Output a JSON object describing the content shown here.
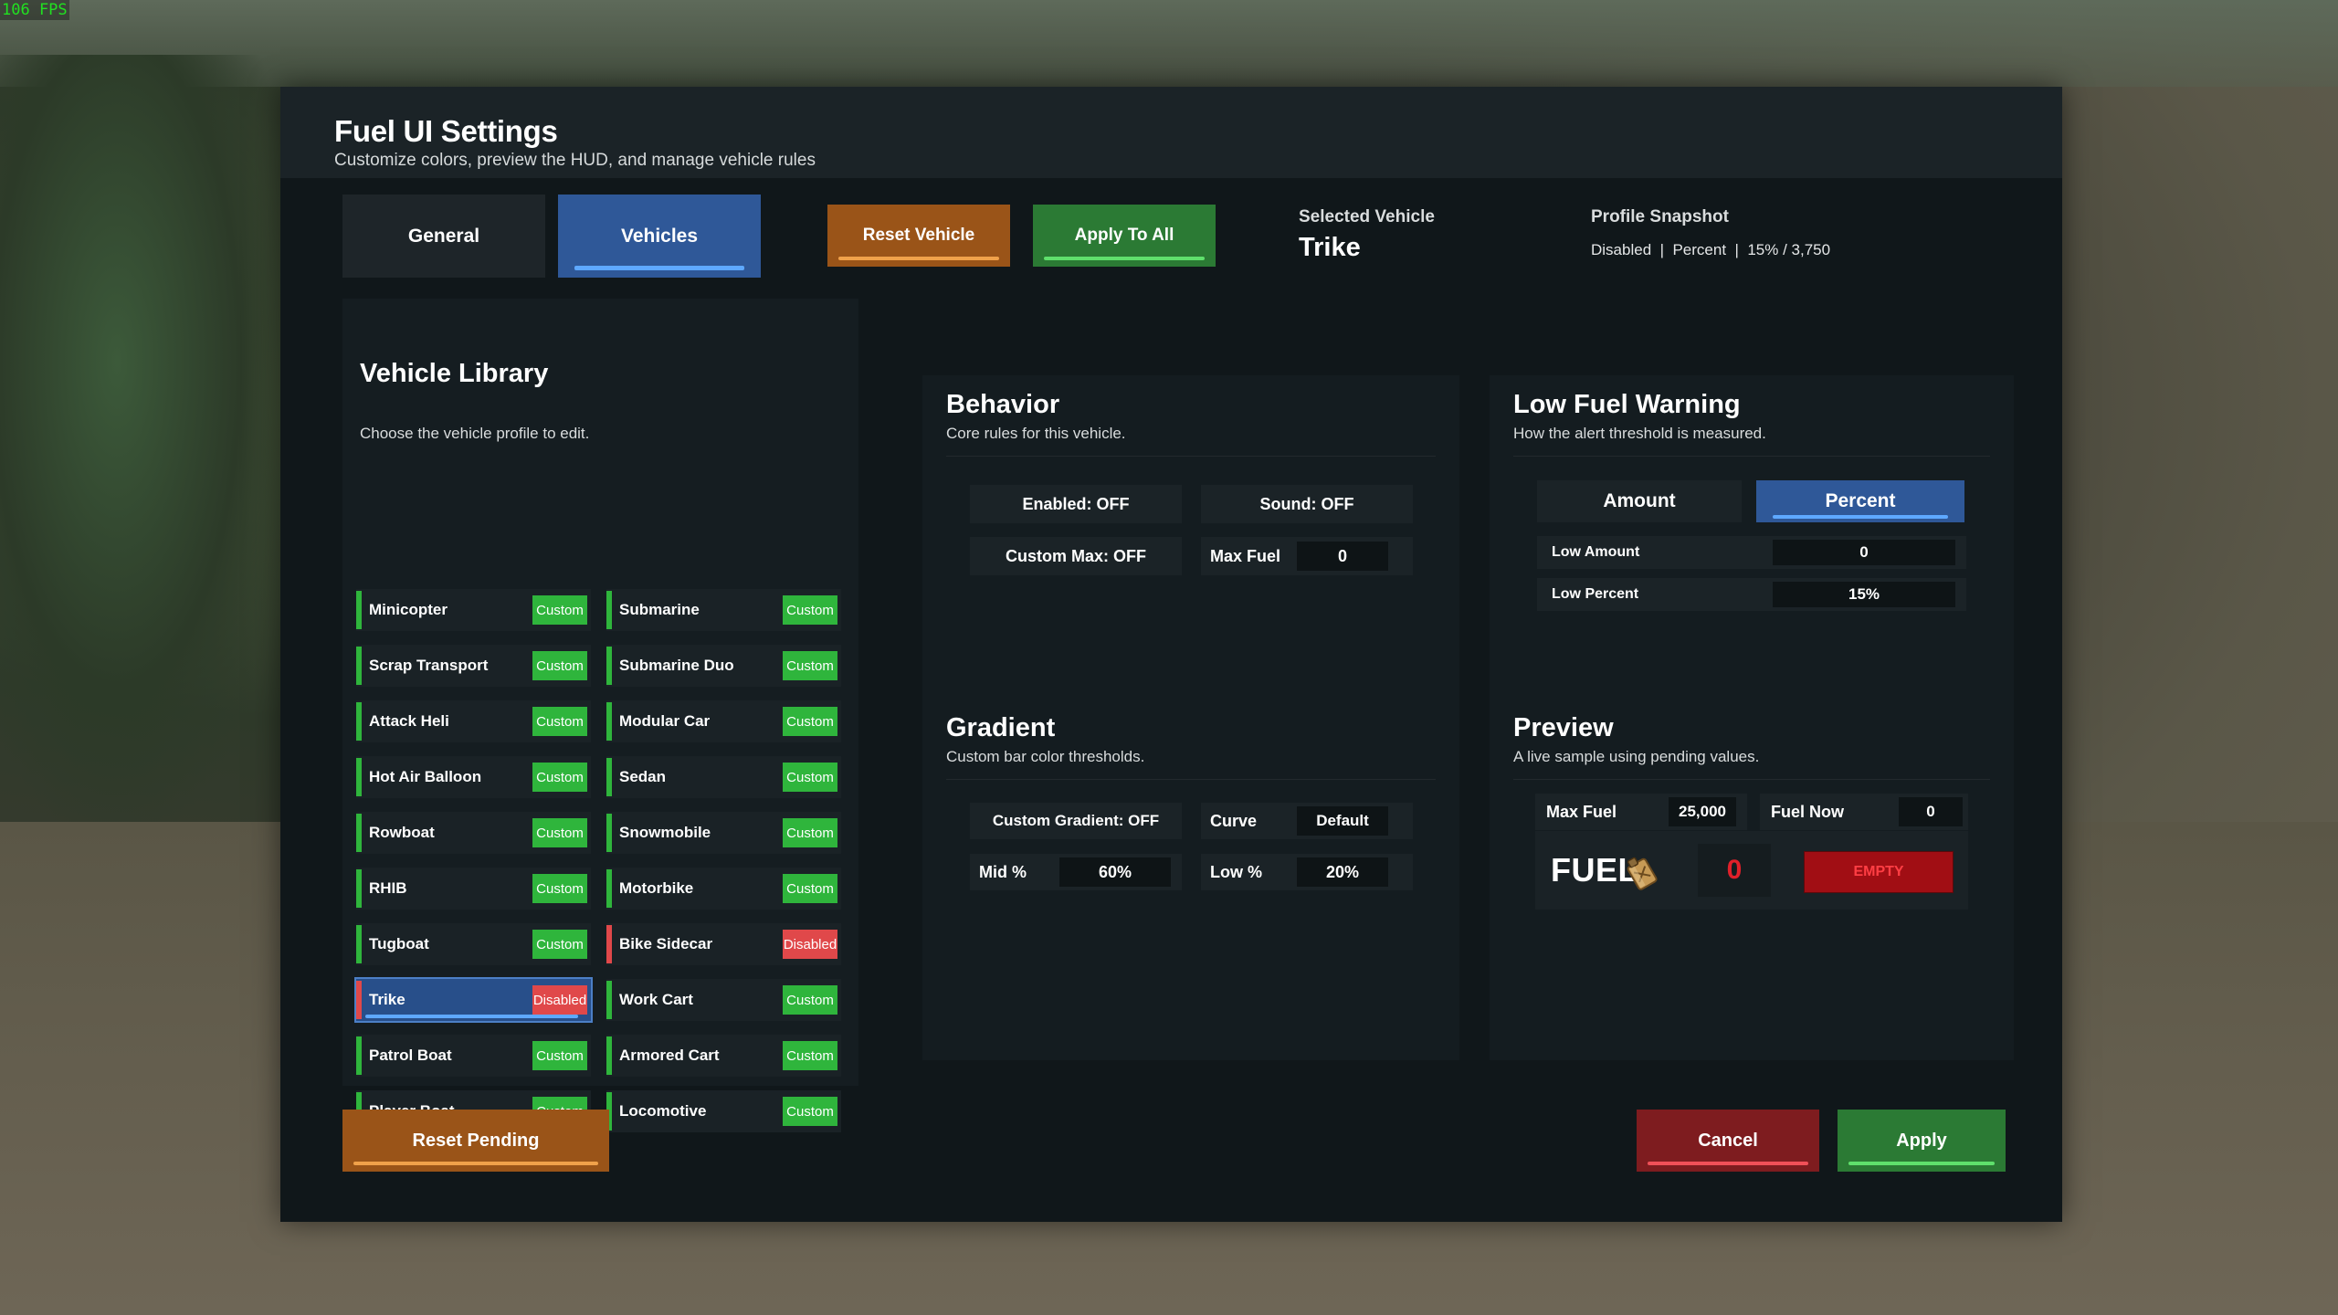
{
  "fps": "106 FPS",
  "panel": {
    "title": "Fuel UI Settings",
    "subtitle": "Customize colors, preview the HUD, and manage vehicle rules"
  },
  "tabs": [
    {
      "label": "General",
      "active": false
    },
    {
      "label": "Vehicles",
      "active": true
    }
  ],
  "toolbar": {
    "reset_vehicle": "Reset Vehicle",
    "apply_to_all": "Apply To All",
    "selected_vehicle_label": "Selected Vehicle",
    "selected_vehicle": "Trike",
    "profile_snapshot_label": "Profile Snapshot",
    "profile_snapshot": "Disabled  |  Percent  |  15% / 3,750"
  },
  "library": {
    "title": "Vehicle Library",
    "subtitle": "Choose the vehicle profile to edit.",
    "left": [
      {
        "name": "Minicopter",
        "status": "Custom"
      },
      {
        "name": "Scrap Transport",
        "status": "Custom"
      },
      {
        "name": "Attack Heli",
        "status": "Custom"
      },
      {
        "name": "Hot Air Balloon",
        "status": "Custom"
      },
      {
        "name": "Rowboat",
        "status": "Custom"
      },
      {
        "name": "RHIB",
        "status": "Custom"
      },
      {
        "name": "Tugboat",
        "status": "Custom"
      },
      {
        "name": "Trike",
        "status": "Disabled"
      },
      {
        "name": "Patrol Boat",
        "status": "Custom"
      },
      {
        "name": "Player Boat",
        "status": "Custom"
      }
    ],
    "right": [
      {
        "name": "Submarine",
        "status": "Custom"
      },
      {
        "name": "Submarine Duo",
        "status": "Custom"
      },
      {
        "name": "Modular Car",
        "status": "Custom"
      },
      {
        "name": "Sedan",
        "status": "Custom"
      },
      {
        "name": "Snowmobile",
        "status": "Custom"
      },
      {
        "name": "Motorbike",
        "status": "Custom"
      },
      {
        "name": "Bike Sidecar",
        "status": "Disabled"
      },
      {
        "name": "Work Cart",
        "status": "Custom"
      },
      {
        "name": "Armored Cart",
        "status": "Custom"
      },
      {
        "name": "Locomotive",
        "status": "Custom"
      }
    ],
    "selected": "Trike"
  },
  "behavior": {
    "title": "Behavior",
    "subtitle": "Core rules for this vehicle.",
    "enabled": "Enabled: OFF",
    "sound": "Sound: OFF",
    "custom_max": "Custom Max: OFF",
    "max_fuel_label": "Max Fuel",
    "max_fuel_value": "0"
  },
  "low_fuel": {
    "title": "Low Fuel Warning",
    "subtitle": "How the alert threshold is measured.",
    "mode_amount": "Amount",
    "mode_percent": "Percent",
    "low_amount_label": "Low Amount",
    "low_amount_value": "0",
    "low_percent_label": "Low Percent",
    "low_percent_value": "15%"
  },
  "gradient": {
    "title": "Gradient",
    "subtitle": "Custom bar color thresholds.",
    "custom_gradient": "Custom Gradient: OFF",
    "curve_label": "Curve",
    "curve_value": "Default",
    "mid_label": "Mid %",
    "mid_value": "60%",
    "low_label": "Low %",
    "low_value": "20%"
  },
  "preview": {
    "title": "Preview",
    "subtitle": "A live sample using pending values.",
    "max_fuel_label": "Max Fuel",
    "max_fuel_value": "25,000",
    "fuel_now_label": "Fuel Now",
    "fuel_now_value": "0",
    "hud_word": "FUEL",
    "hud_icon": "fuel-can-icon",
    "hud_value": "0",
    "hud_state": "EMPTY"
  },
  "footer": {
    "reset_pending": "Reset Pending",
    "cancel": "Cancel",
    "apply": "Apply"
  },
  "colors": {
    "accent_blue": "#2f5898",
    "custom_green": "#2fb53c",
    "disabled_red": "#e0484a",
    "orange": "#9a5418",
    "empty_red": "#a10e14"
  }
}
